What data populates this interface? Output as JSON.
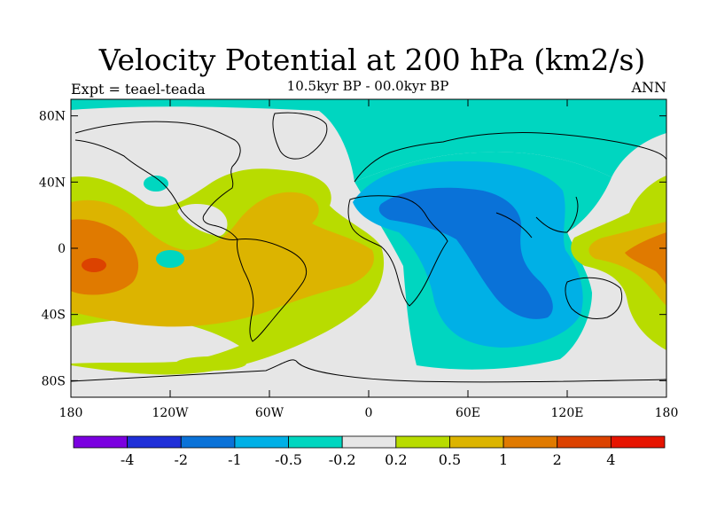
{
  "header": {
    "title": "Velocity Potential at 200 hPa (km2/s)",
    "subtitle": "10.5kyr BP - 00.0kyr BP",
    "left_label": "Expt = teael-teada",
    "right_label": "ANN"
  },
  "chart_data": {
    "type": "heatmap",
    "map_projection": "cylindrical-equidistant",
    "lon_range": [
      -180,
      180
    ],
    "lat_range": [
      -90,
      90
    ],
    "x_ticks": [
      {
        "lon": -180,
        "label": "180"
      },
      {
        "lon": -120,
        "label": "120W"
      },
      {
        "lon": -60,
        "label": "60W"
      },
      {
        "lon": 0,
        "label": "0"
      },
      {
        "lon": 60,
        "label": "60E"
      },
      {
        "lon": 120,
        "label": "120E"
      },
      {
        "lon": 180,
        "label": "180"
      }
    ],
    "y_ticks": [
      {
        "lat": 80,
        "label": "80N"
      },
      {
        "lat": 40,
        "label": "40N"
      },
      {
        "lat": 0,
        "label": "0"
      },
      {
        "lat": -40,
        "label": "40S"
      },
      {
        "lat": -80,
        "label": "80S"
      }
    ],
    "colorbar": {
      "colors": [
        "#7b00e0",
        "#1f2fd8",
        "#0a72d8",
        "#00b0e6",
        "#00d6c0",
        "#e6e6e6",
        "#b8dc00",
        "#dcb400",
        "#e07a00",
        "#dc4200",
        "#e61400"
      ],
      "labels": [
        "-4",
        "-2",
        "-1",
        "-0.5",
        "-0.2",
        "0.2",
        "0.5",
        "1",
        "2",
        "4"
      ]
    }
  }
}
